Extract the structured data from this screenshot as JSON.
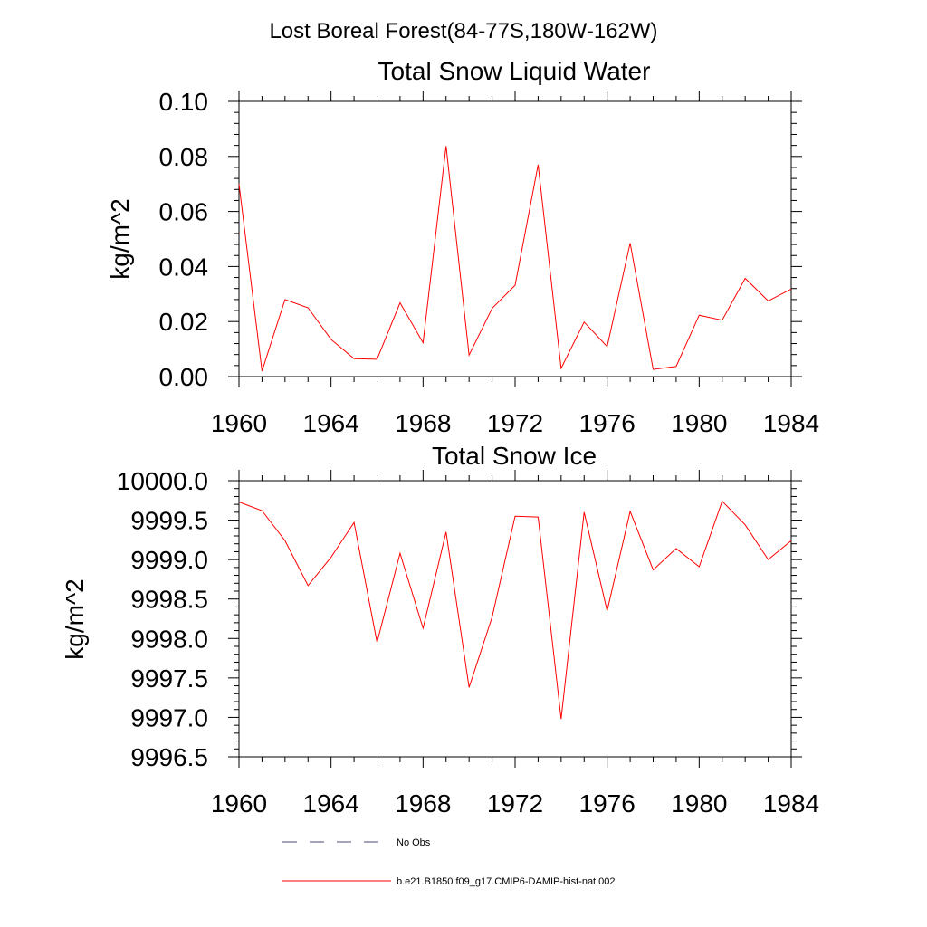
{
  "figure": {
    "title": "Lost Boreal Forest(84-77S,180W-162W)"
  },
  "chart_data": [
    {
      "type": "line",
      "title": "Total Snow Liquid Water",
      "ylabel": "kg/m^2",
      "xlabel": "",
      "xlim": [
        1960,
        1984
      ],
      "ylim": [
        0.0,
        0.1
      ],
      "x_ticks": [
        1960,
        1964,
        1968,
        1972,
        1976,
        1980,
        1984
      ],
      "x_tick_labels": [
        "1960",
        "1964",
        "1968",
        "1972",
        "1976",
        "1980",
        "1984"
      ],
      "y_ticks": [
        0.0,
        0.02,
        0.04,
        0.06,
        0.08,
        0.1
      ],
      "y_tick_labels": [
        "0.00",
        "0.02",
        "0.04",
        "0.06",
        "0.08",
        "0.10"
      ],
      "x": [
        1960,
        1961,
        1962,
        1963,
        1964,
        1965,
        1966,
        1967,
        1968,
        1969,
        1970,
        1971,
        1972,
        1973,
        1974,
        1975,
        1976,
        1977,
        1978,
        1979,
        1980,
        1981,
        1982,
        1983,
        1984
      ],
      "series": [
        {
          "name": "b.e21.B1850.f09_g17.CMIP6-DAMIP-hist-nat.002",
          "color": "#ff0000",
          "values": [
            0.07,
            0.002,
            0.028,
            0.025,
            0.0135,
            0.0065,
            0.0063,
            0.0268,
            0.0123,
            0.0838,
            0.0078,
            0.0248,
            0.0332,
            0.077,
            0.003,
            0.0198,
            0.0109,
            0.0485,
            0.0026,
            0.0037,
            0.0223,
            0.0205,
            0.0357,
            0.0275,
            0.0318
          ]
        }
      ],
      "grid": false
    },
    {
      "type": "line",
      "title": "Total Snow Ice",
      "ylabel": "kg/m^2",
      "xlabel": "",
      "xlim": [
        1960,
        1984
      ],
      "ylim": [
        9996.5,
        10000.0
      ],
      "x_ticks": [
        1960,
        1964,
        1968,
        1972,
        1976,
        1980,
        1984
      ],
      "x_tick_labels": [
        "1960",
        "1964",
        "1968",
        "1972",
        "1976",
        "1980",
        "1984"
      ],
      "y_ticks": [
        9996.5,
        9997.0,
        9997.5,
        9998.0,
        9998.5,
        9999.0,
        9999.5,
        10000.0
      ],
      "y_tick_labels": [
        "9996.5",
        "9997.0",
        "9997.5",
        "9998.0",
        "9998.5",
        "9999.0",
        "9999.5",
        "10000.0"
      ],
      "x": [
        1960,
        1961,
        1962,
        1963,
        1964,
        1965,
        1966,
        1967,
        1968,
        1969,
        1970,
        1971,
        1972,
        1973,
        1974,
        1975,
        1976,
        1977,
        1978,
        1979,
        1980,
        1981,
        1982,
        1983,
        1984
      ],
      "series": [
        {
          "name": "b.e21.B1850.f09_g17.CMIP6-DAMIP-hist-nat.002",
          "color": "#ff0000",
          "values": [
            9999.73,
            9999.62,
            9999.24,
            9998.67,
            9999.03,
            9999.47,
            9997.95,
            9999.08,
            9998.13,
            9999.35,
            9997.38,
            9998.27,
            9999.55,
            9999.54,
            9996.98,
            9999.6,
            9998.35,
            9999.61,
            9998.87,
            9999.14,
            9998.91,
            9999.74,
            9999.44,
            9999.0,
            9999.24
          ]
        }
      ],
      "grid": false
    }
  ],
  "legend": {
    "placement": "bottom-center",
    "entries": [
      {
        "label": "No Obs",
        "color": "#4a4a7a",
        "style": "dashed"
      },
      {
        "label": "b.e21.B1850.f09_g17.CMIP6-DAMIP-hist-nat.002",
        "color": "#ff0000",
        "style": "solid"
      }
    ]
  }
}
